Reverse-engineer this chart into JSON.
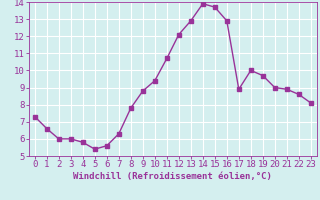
{
  "x": [
    0,
    1,
    2,
    3,
    4,
    5,
    6,
    7,
    8,
    9,
    10,
    11,
    12,
    13,
    14,
    15,
    16,
    17,
    18,
    19,
    20,
    21,
    22,
    23
  ],
  "y": [
    7.3,
    6.6,
    6.0,
    6.0,
    5.8,
    5.4,
    5.6,
    6.3,
    7.8,
    8.8,
    9.4,
    10.7,
    12.1,
    12.9,
    13.9,
    13.7,
    12.9,
    8.9,
    10.0,
    9.7,
    9.0,
    8.9,
    8.6,
    8.1
  ],
  "line_color": "#993399",
  "marker": "s",
  "marker_size": 2.5,
  "background_color": "#d4efef",
  "grid_color": "#ffffff",
  "xlabel": "Windchill (Refroidissement éolien,°C)",
  "xlabel_fontsize": 6.5,
  "tick_fontsize": 6.5,
  "xlim": [
    -0.5,
    23.5
  ],
  "ylim": [
    5,
    14
  ],
  "yticks": [
    5,
    6,
    7,
    8,
    9,
    10,
    11,
    12,
    13,
    14
  ],
  "xticks": [
    0,
    1,
    2,
    3,
    4,
    5,
    6,
    7,
    8,
    9,
    10,
    11,
    12,
    13,
    14,
    15,
    16,
    17,
    18,
    19,
    20,
    21,
    22,
    23
  ],
  "linewidth": 1.0
}
